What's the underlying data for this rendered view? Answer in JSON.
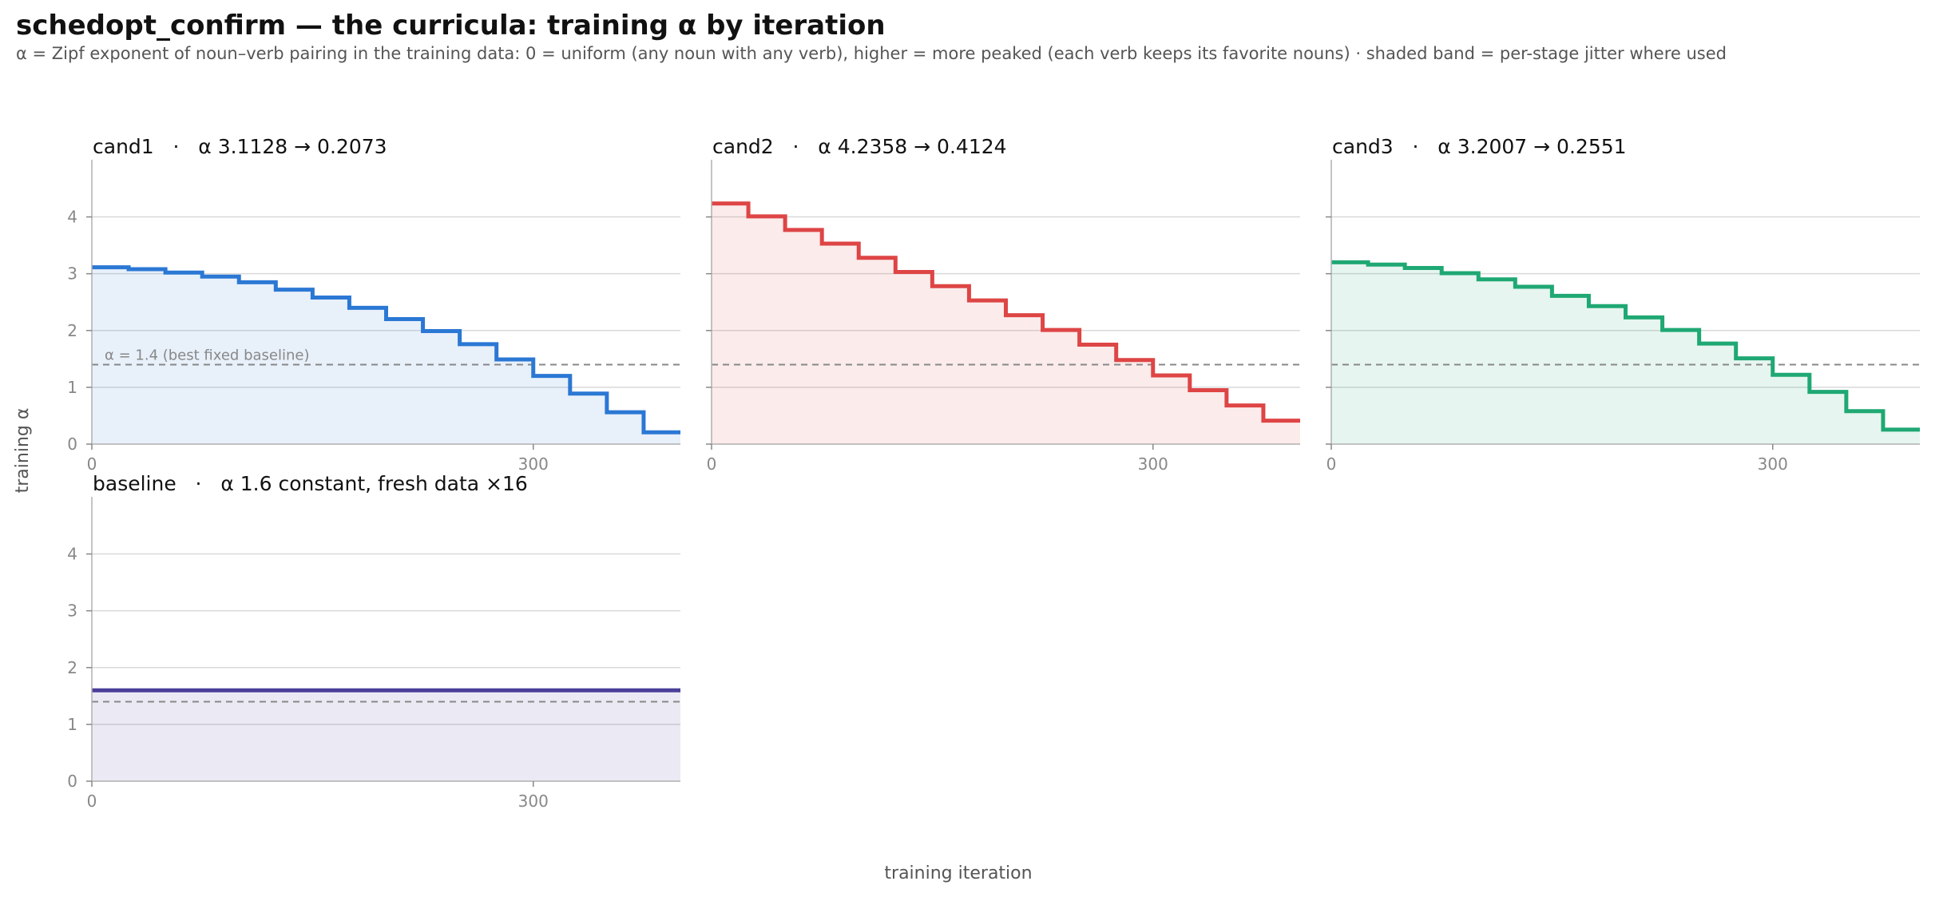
{
  "title": "schedopt_confirm — the curricula: training α by iteration",
  "subtitle": "α = Zipf exponent of noun–verb pairing in the training data: 0 = uniform (any noun with any verb), higher = more peaked (each verb keeps its favorite nouns) · shaded band = per-stage jitter where used",
  "ylabel": "training α",
  "xlabel": "training iteration",
  "colors": {
    "cand1": "#2b78d4",
    "cand2": "#de4545",
    "cand3": "#1fa873",
    "baseline": "#4b3f99",
    "reference": "#888888",
    "grid": "#d9d9d9",
    "tick": "#888888"
  },
  "chart_data": [
    {
      "type": "line",
      "step": true,
      "name": "cand1",
      "title": "cand1   ·   α 3.1128 → 0.2073",
      "color": "cand1",
      "xlim": [
        0,
        400
      ],
      "ylim": [
        0,
        4.5
      ],
      "xticks": [
        0,
        300
      ],
      "yticks": [
        0,
        1,
        2,
        3,
        4
      ],
      "grid": true,
      "reference": {
        "value": 1.4,
        "label": "α = 1.4 (best fixed baseline)"
      },
      "x": [
        0,
        25,
        50,
        75,
        100,
        125,
        150,
        175,
        200,
        225,
        250,
        275,
        300,
        325,
        350,
        375
      ],
      "values": [
        3.1128,
        3.08,
        3.02,
        2.95,
        2.85,
        2.72,
        2.58,
        2.4,
        2.2,
        1.99,
        1.76,
        1.49,
        1.2,
        0.89,
        0.56,
        0.2073
      ]
    },
    {
      "type": "line",
      "step": true,
      "name": "cand2",
      "title": "cand2   ·   α 4.2358 → 0.4124",
      "color": "cand2",
      "xlim": [
        0,
        400
      ],
      "ylim": [
        0,
        4.5
      ],
      "xticks": [
        0,
        300
      ],
      "yticks": [
        0,
        1,
        2,
        3,
        4
      ],
      "grid": true,
      "reference": {
        "value": 1.4,
        "label": ""
      },
      "x": [
        0,
        25,
        50,
        75,
        100,
        125,
        150,
        175,
        200,
        225,
        250,
        275,
        300,
        325,
        350,
        375
      ],
      "values": [
        4.2358,
        4.01,
        3.77,
        3.53,
        3.28,
        3.03,
        2.78,
        2.53,
        2.27,
        2.01,
        1.75,
        1.48,
        1.21,
        0.95,
        0.68,
        0.4124
      ]
    },
    {
      "type": "line",
      "step": true,
      "name": "cand3",
      "title": "cand3   ·   α 3.2007 → 0.2551",
      "color": "cand3",
      "xlim": [
        0,
        400
      ],
      "ylim": [
        0,
        4.5
      ],
      "xticks": [
        0,
        300
      ],
      "yticks": [
        0,
        1,
        2,
        3,
        4
      ],
      "grid": true,
      "reference": {
        "value": 1.4,
        "label": ""
      },
      "x": [
        0,
        25,
        50,
        75,
        100,
        125,
        150,
        175,
        200,
        225,
        250,
        275,
        300,
        325,
        350,
        375
      ],
      "values": [
        3.2007,
        3.16,
        3.1,
        3.01,
        2.9,
        2.77,
        2.61,
        2.43,
        2.23,
        2.01,
        1.77,
        1.51,
        1.22,
        0.92,
        0.58,
        0.2551
      ]
    },
    {
      "type": "line",
      "step": true,
      "name": "baseline",
      "title": "baseline   ·   α 1.6 constant, fresh data ×16",
      "color": "baseline",
      "xlim": [
        0,
        400
      ],
      "ylim": [
        0,
        4.5
      ],
      "xticks": [
        0,
        300
      ],
      "yticks": [
        0,
        1,
        2,
        3,
        4
      ],
      "grid": true,
      "reference": {
        "value": 1.4,
        "label": ""
      },
      "x": [
        0
      ],
      "values": [
        1.6
      ]
    }
  ]
}
